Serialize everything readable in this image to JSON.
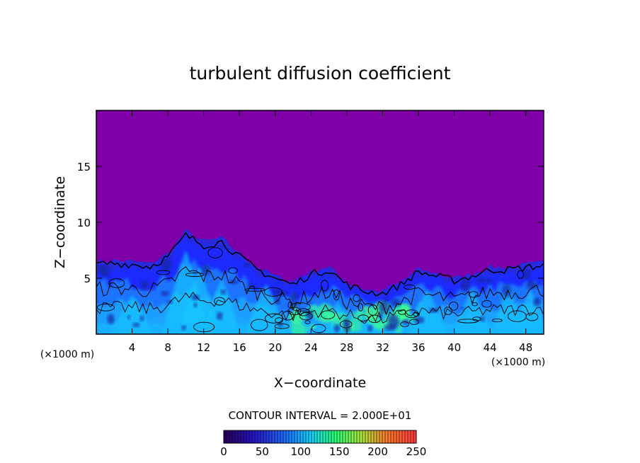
{
  "chart_data": {
    "type": "heatmap",
    "title": "turbulent diffusion coefficient",
    "xlabel": "X−coordinate",
    "ylabel": "Z−coordinate",
    "x_unit_left": "(×1000 m)",
    "x_unit_right": "(×1000 m)",
    "xlim": [
      0,
      50
    ],
    "ylim": [
      0,
      20
    ],
    "x_ticks": [
      4,
      8,
      12,
      16,
      20,
      24,
      28,
      32,
      36,
      40,
      44,
      48
    ],
    "x_tick_labels": [
      "4",
      "8",
      "12",
      "16",
      "20",
      "24",
      "28",
      "32",
      "36",
      "40",
      "44",
      "48"
    ],
    "y_ticks": [
      5,
      10,
      15
    ],
    "y_tick_labels": [
      "5",
      "10",
      "15"
    ],
    "contour_interval_text": "CONTOUR INTERVAL = 2.000E+01",
    "contour_interval": 20,
    "colorbar": {
      "min": 0,
      "max": 250,
      "ticks": [
        0,
        50,
        100,
        150,
        200,
        250
      ],
      "tick_labels": [
        "0",
        "50",
        "100",
        "150",
        "200",
        "250"
      ]
    },
    "background_color": "#7f00a8",
    "turbulent_layer_top_profile": [
      {
        "x": 0,
        "z": 6.5
      },
      {
        "x": 2,
        "z": 6.6
      },
      {
        "x": 4,
        "z": 6.5
      },
      {
        "x": 6,
        "z": 6.3
      },
      {
        "x": 8,
        "z": 7.2
      },
      {
        "x": 10,
        "z": 9.2
      },
      {
        "x": 12,
        "z": 8.3
      },
      {
        "x": 14,
        "z": 8.6
      },
      {
        "x": 16,
        "z": 7.2
      },
      {
        "x": 18,
        "z": 6.0
      },
      {
        "x": 20,
        "z": 5.2
      },
      {
        "x": 22,
        "z": 4.6
      },
      {
        "x": 24,
        "z": 5.6
      },
      {
        "x": 26,
        "z": 6.0
      },
      {
        "x": 28,
        "z": 4.6
      },
      {
        "x": 30,
        "z": 4.0
      },
      {
        "x": 32,
        "z": 3.8
      },
      {
        "x": 34,
        "z": 4.6
      },
      {
        "x": 36,
        "z": 5.8
      },
      {
        "x": 38,
        "z": 5.4
      },
      {
        "x": 40,
        "z": 5.0
      },
      {
        "x": 42,
        "z": 5.4
      },
      {
        "x": 44,
        "z": 6.0
      },
      {
        "x": 46,
        "z": 6.0
      },
      {
        "x": 48,
        "z": 6.2
      },
      {
        "x": 50,
        "z": 6.4
      }
    ],
    "high_value_region_x": [
      22,
      36
    ],
    "colors": {
      "low": "#1a2cff",
      "mid": "#18c8ff",
      "high": "#40ff90",
      "frame": "#000000"
    }
  }
}
